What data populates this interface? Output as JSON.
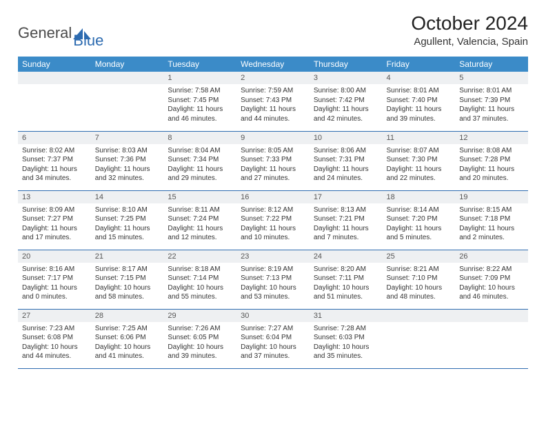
{
  "logo": {
    "part1": "General",
    "part2": "Blue"
  },
  "title": "October 2024",
  "location": "Agullent, Valencia, Spain",
  "colors": {
    "header_bg": "#3b8bc8",
    "header_text": "#ffffff",
    "daynum_bg": "#eef0f2",
    "border": "#2d6bb0",
    "logo_gray": "#4a4a4a",
    "logo_blue": "#2d6bb0"
  },
  "day_headers": [
    "Sunday",
    "Monday",
    "Tuesday",
    "Wednesday",
    "Thursday",
    "Friday",
    "Saturday"
  ],
  "weeks": [
    [
      {
        "n": "",
        "lines": []
      },
      {
        "n": "",
        "lines": []
      },
      {
        "n": "1",
        "lines": [
          "Sunrise: 7:58 AM",
          "Sunset: 7:45 PM",
          "Daylight: 11 hours",
          "and 46 minutes."
        ]
      },
      {
        "n": "2",
        "lines": [
          "Sunrise: 7:59 AM",
          "Sunset: 7:43 PM",
          "Daylight: 11 hours",
          "and 44 minutes."
        ]
      },
      {
        "n": "3",
        "lines": [
          "Sunrise: 8:00 AM",
          "Sunset: 7:42 PM",
          "Daylight: 11 hours",
          "and 42 minutes."
        ]
      },
      {
        "n": "4",
        "lines": [
          "Sunrise: 8:01 AM",
          "Sunset: 7:40 PM",
          "Daylight: 11 hours",
          "and 39 minutes."
        ]
      },
      {
        "n": "5",
        "lines": [
          "Sunrise: 8:01 AM",
          "Sunset: 7:39 PM",
          "Daylight: 11 hours",
          "and 37 minutes."
        ]
      }
    ],
    [
      {
        "n": "6",
        "lines": [
          "Sunrise: 8:02 AM",
          "Sunset: 7:37 PM",
          "Daylight: 11 hours",
          "and 34 minutes."
        ]
      },
      {
        "n": "7",
        "lines": [
          "Sunrise: 8:03 AM",
          "Sunset: 7:36 PM",
          "Daylight: 11 hours",
          "and 32 minutes."
        ]
      },
      {
        "n": "8",
        "lines": [
          "Sunrise: 8:04 AM",
          "Sunset: 7:34 PM",
          "Daylight: 11 hours",
          "and 29 minutes."
        ]
      },
      {
        "n": "9",
        "lines": [
          "Sunrise: 8:05 AM",
          "Sunset: 7:33 PM",
          "Daylight: 11 hours",
          "and 27 minutes."
        ]
      },
      {
        "n": "10",
        "lines": [
          "Sunrise: 8:06 AM",
          "Sunset: 7:31 PM",
          "Daylight: 11 hours",
          "and 24 minutes."
        ]
      },
      {
        "n": "11",
        "lines": [
          "Sunrise: 8:07 AM",
          "Sunset: 7:30 PM",
          "Daylight: 11 hours",
          "and 22 minutes."
        ]
      },
      {
        "n": "12",
        "lines": [
          "Sunrise: 8:08 AM",
          "Sunset: 7:28 PM",
          "Daylight: 11 hours",
          "and 20 minutes."
        ]
      }
    ],
    [
      {
        "n": "13",
        "lines": [
          "Sunrise: 8:09 AM",
          "Sunset: 7:27 PM",
          "Daylight: 11 hours",
          "and 17 minutes."
        ]
      },
      {
        "n": "14",
        "lines": [
          "Sunrise: 8:10 AM",
          "Sunset: 7:25 PM",
          "Daylight: 11 hours",
          "and 15 minutes."
        ]
      },
      {
        "n": "15",
        "lines": [
          "Sunrise: 8:11 AM",
          "Sunset: 7:24 PM",
          "Daylight: 11 hours",
          "and 12 minutes."
        ]
      },
      {
        "n": "16",
        "lines": [
          "Sunrise: 8:12 AM",
          "Sunset: 7:22 PM",
          "Daylight: 11 hours",
          "and 10 minutes."
        ]
      },
      {
        "n": "17",
        "lines": [
          "Sunrise: 8:13 AM",
          "Sunset: 7:21 PM",
          "Daylight: 11 hours",
          "and 7 minutes."
        ]
      },
      {
        "n": "18",
        "lines": [
          "Sunrise: 8:14 AM",
          "Sunset: 7:20 PM",
          "Daylight: 11 hours",
          "and 5 minutes."
        ]
      },
      {
        "n": "19",
        "lines": [
          "Sunrise: 8:15 AM",
          "Sunset: 7:18 PM",
          "Daylight: 11 hours",
          "and 2 minutes."
        ]
      }
    ],
    [
      {
        "n": "20",
        "lines": [
          "Sunrise: 8:16 AM",
          "Sunset: 7:17 PM",
          "Daylight: 11 hours",
          "and 0 minutes."
        ]
      },
      {
        "n": "21",
        "lines": [
          "Sunrise: 8:17 AM",
          "Sunset: 7:15 PM",
          "Daylight: 10 hours",
          "and 58 minutes."
        ]
      },
      {
        "n": "22",
        "lines": [
          "Sunrise: 8:18 AM",
          "Sunset: 7:14 PM",
          "Daylight: 10 hours",
          "and 55 minutes."
        ]
      },
      {
        "n": "23",
        "lines": [
          "Sunrise: 8:19 AM",
          "Sunset: 7:13 PM",
          "Daylight: 10 hours",
          "and 53 minutes."
        ]
      },
      {
        "n": "24",
        "lines": [
          "Sunrise: 8:20 AM",
          "Sunset: 7:11 PM",
          "Daylight: 10 hours",
          "and 51 minutes."
        ]
      },
      {
        "n": "25",
        "lines": [
          "Sunrise: 8:21 AM",
          "Sunset: 7:10 PM",
          "Daylight: 10 hours",
          "and 48 minutes."
        ]
      },
      {
        "n": "26",
        "lines": [
          "Sunrise: 8:22 AM",
          "Sunset: 7:09 PM",
          "Daylight: 10 hours",
          "and 46 minutes."
        ]
      }
    ],
    [
      {
        "n": "27",
        "lines": [
          "Sunrise: 7:23 AM",
          "Sunset: 6:08 PM",
          "Daylight: 10 hours",
          "and 44 minutes."
        ]
      },
      {
        "n": "28",
        "lines": [
          "Sunrise: 7:25 AM",
          "Sunset: 6:06 PM",
          "Daylight: 10 hours",
          "and 41 minutes."
        ]
      },
      {
        "n": "29",
        "lines": [
          "Sunrise: 7:26 AM",
          "Sunset: 6:05 PM",
          "Daylight: 10 hours",
          "and 39 minutes."
        ]
      },
      {
        "n": "30",
        "lines": [
          "Sunrise: 7:27 AM",
          "Sunset: 6:04 PM",
          "Daylight: 10 hours",
          "and 37 minutes."
        ]
      },
      {
        "n": "31",
        "lines": [
          "Sunrise: 7:28 AM",
          "Sunset: 6:03 PM",
          "Daylight: 10 hours",
          "and 35 minutes."
        ]
      },
      {
        "n": "",
        "lines": []
      },
      {
        "n": "",
        "lines": []
      }
    ]
  ]
}
